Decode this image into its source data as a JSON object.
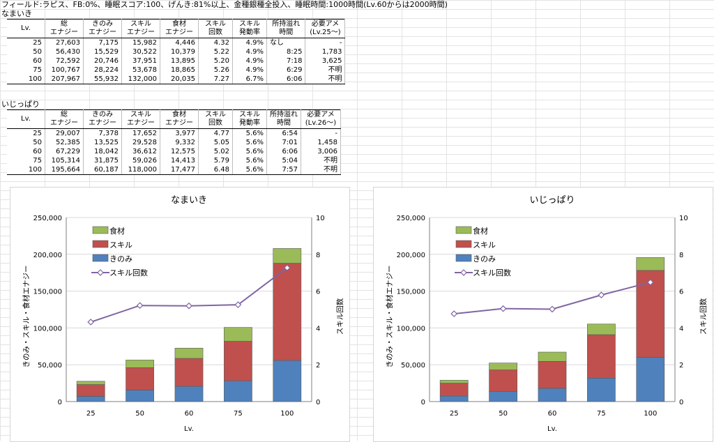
{
  "caption": "フィールド:ラピス、FB:0%、睡眠スコア:100、げんき:81%以上、金種銀種全投入、睡眠時間:1000時間(Lv.60からは2000時間)",
  "columns": [
    "Lv.",
    "総\nエナジー",
    "きのみ\nエナジー",
    "スキル\nエナジー",
    "食材\nエナジー",
    "スキル\n回数",
    "スキル\n発動率",
    "所持溢れ\n時間"
  ],
  "tables": [
    {
      "title": "なまいき",
      "last_col": "必要アメ\n(Lv.25〜)",
      "rows": [
        {
          "lv": "25",
          "total": "27,603",
          "berry": "7,175",
          "skill": "15,982",
          "ing": "4,446",
          "cnt": "4.32",
          "rate": "4.9%",
          "note": "なし",
          "overflow": "",
          "candy": "-"
        },
        {
          "lv": "50",
          "total": "56,430",
          "berry": "15,529",
          "skill": "30,522",
          "ing": "10,379",
          "cnt": "5.22",
          "rate": "4.9%",
          "note": "",
          "overflow": "8:25",
          "candy": "1,783"
        },
        {
          "lv": "60",
          "total": "72,592",
          "berry": "20,746",
          "skill": "37,951",
          "ing": "13,895",
          "cnt": "5.20",
          "rate": "4.9%",
          "note": "",
          "overflow": "7:18",
          "candy": "3,625"
        },
        {
          "lv": "75",
          "total": "100,767",
          "berry": "28,224",
          "skill": "53,678",
          "ing": "18,865",
          "cnt": "5.26",
          "rate": "4.9%",
          "note": "",
          "overflow": "6:29",
          "candy": "不明"
        },
        {
          "lv": "100",
          "total": "207,967",
          "berry": "55,932",
          "skill": "132,000",
          "ing": "20,035",
          "cnt": "7.27",
          "rate": "6.7%",
          "note": "",
          "overflow": "6:06",
          "candy": "不明"
        }
      ]
    },
    {
      "title": "いじっぱり",
      "last_col": "必要アメ\n(Lv.26〜)",
      "rows": [
        {
          "lv": "25",
          "total": "29,007",
          "berry": "7,378",
          "skill": "17,652",
          "ing": "3,977",
          "cnt": "4.77",
          "rate": "5.6%",
          "note": "",
          "overflow": "6:54",
          "candy": "-"
        },
        {
          "lv": "50",
          "total": "52,385",
          "berry": "13,525",
          "skill": "29,528",
          "ing": "9,332",
          "cnt": "5.05",
          "rate": "5.6%",
          "note": "",
          "overflow": "7:01",
          "candy": "1,458"
        },
        {
          "lv": "60",
          "total": "67,229",
          "berry": "18,042",
          "skill": "36,612",
          "ing": "12,575",
          "cnt": "5.02",
          "rate": "5.6%",
          "note": "",
          "overflow": "6:06",
          "candy": "3,006"
        },
        {
          "lv": "75",
          "total": "105,314",
          "berry": "31,875",
          "skill": "59,026",
          "ing": "14,413",
          "cnt": "5.79",
          "rate": "5.6%",
          "note": "",
          "overflow": "5:04",
          "candy": "不明"
        },
        {
          "lv": "100",
          "total": "195,664",
          "berry": "60,187",
          "skill": "118,000",
          "ing": "17,477",
          "cnt": "6.48",
          "rate": "5.6%",
          "note": "",
          "overflow": "7:57",
          "candy": "不明"
        }
      ]
    }
  ],
  "chart_data": [
    {
      "type": "bar",
      "stacked": true,
      "title": "なまいき",
      "categories": [
        "25",
        "50",
        "60",
        "75",
        "100"
      ],
      "xlabel": "Lv.",
      "ylabel": "きのみ・スキル・食材エナジー",
      "y2label": "スキル回数",
      "ylim": [
        0,
        250000
      ],
      "yticks": [
        0,
        50000,
        100000,
        150000,
        200000,
        250000
      ],
      "ytick_labels": [
        "0",
        "50,000",
        "100,000",
        "150,000",
        "200,000",
        "250,000"
      ],
      "y2lim": [
        0,
        10
      ],
      "y2ticks": [
        0,
        2,
        4,
        6,
        8,
        10
      ],
      "series": [
        {
          "name": "きのみ",
          "values": [
            7175,
            15529,
            20746,
            28224,
            55932
          ],
          "color": "#4f81bd"
        },
        {
          "name": "スキル",
          "values": [
            15982,
            30522,
            37951,
            53678,
            132000
          ],
          "color": "#c0504d"
        },
        {
          "name": "食材",
          "values": [
            4446,
            10379,
            13895,
            18865,
            20035
          ],
          "color": "#9bbb59"
        }
      ],
      "line_series": {
        "name": "スキル回数",
        "values": [
          4.32,
          5.22,
          5.2,
          5.26,
          7.27
        ],
        "color": "#8064a2",
        "axis": "right"
      },
      "legend_position": "top-left"
    },
    {
      "type": "bar",
      "stacked": true,
      "title": "いじっぱり",
      "categories": [
        "25",
        "50",
        "60",
        "75",
        "100"
      ],
      "xlabel": "Lv.",
      "ylabel": "きのみ・スキル・食材エナジー",
      "y2label": "スキル回数",
      "ylim": [
        0,
        250000
      ],
      "yticks": [
        0,
        50000,
        100000,
        150000,
        200000,
        250000
      ],
      "ytick_labels": [
        "0",
        "50,000",
        "100,000",
        "150,000",
        "200,000",
        "250,000"
      ],
      "y2lim": [
        0,
        10
      ],
      "y2ticks": [
        0,
        2,
        4,
        6,
        8,
        10
      ],
      "series": [
        {
          "name": "きのみ",
          "values": [
            7378,
            13525,
            18042,
            31875,
            60187
          ],
          "color": "#4f81bd"
        },
        {
          "name": "スキル",
          "values": [
            17652,
            29528,
            36612,
            59026,
            118000
          ],
          "color": "#c0504d"
        },
        {
          "name": "食材",
          "values": [
            3977,
            9332,
            12575,
            14413,
            17477
          ],
          "color": "#9bbb59"
        }
      ],
      "line_series": {
        "name": "スキル回数",
        "values": [
          4.77,
          5.05,
          5.02,
          5.79,
          6.48
        ],
        "color": "#8064a2",
        "axis": "right"
      },
      "legend_position": "top-left"
    }
  ]
}
